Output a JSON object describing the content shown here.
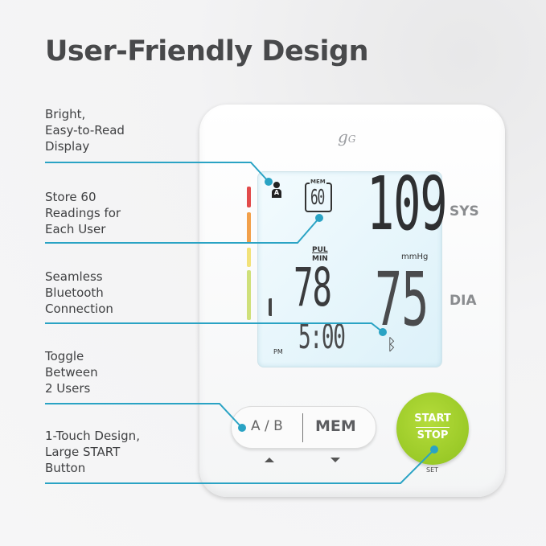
{
  "title": "User-Friendly Design",
  "features": [
    "Bright,\nEasy-to-Read\nDisplay",
    "Store 60\nReadings for\nEach User",
    "Seamless\nBluetooth\nConnection",
    "Toggle\nBetween\n2 Users",
    "1-Touch Design,\nLarge START\nButton"
  ],
  "device": {
    "logo": "gG",
    "user": "A",
    "mem_label": "MEM",
    "mem_count": "60",
    "sys": "109",
    "sys_label": "SYS",
    "unit": "mmHg",
    "pul_label_top": "PUL",
    "pul_label_bottom": "MIN",
    "pulse": "78",
    "dia": "75",
    "dia_label": "DIA",
    "time": "5:00",
    "ampm": "PM",
    "user_toggle": "A / B",
    "mem_button": "MEM",
    "start_label": "START",
    "stop_label": "STOP",
    "set_label": "SET"
  },
  "colors": {
    "accent": "#2aa3c4",
    "start_button": "#9ccb2a",
    "bar": [
      "#e24b4b",
      "#f2a04a",
      "#f2e27a",
      "#cfe07a"
    ]
  }
}
